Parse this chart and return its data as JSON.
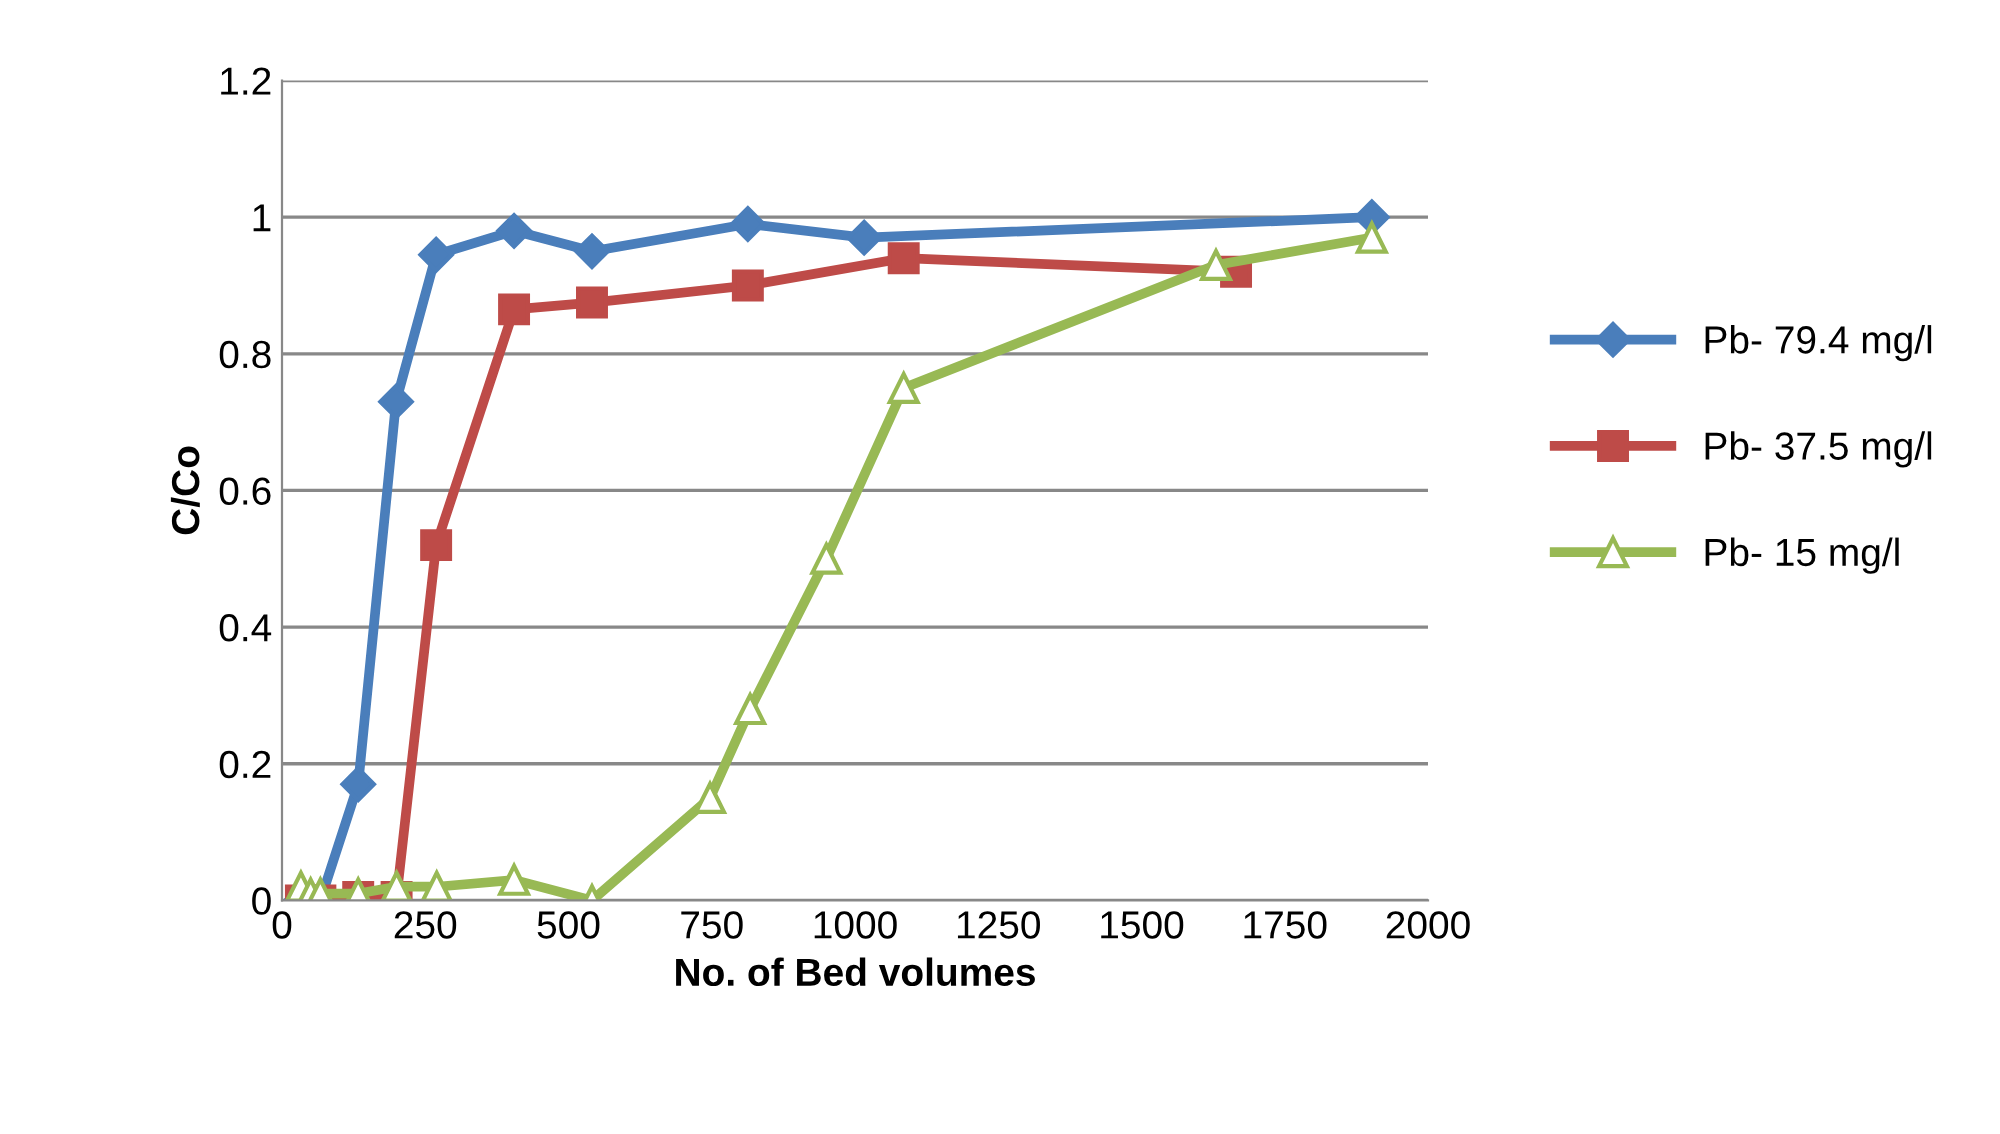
{
  "chart_data": {
    "type": "line",
    "xlabel": "No. of Bed volumes",
    "ylabel": "C/Co",
    "xlim": [
      0,
      2000
    ],
    "xticks": [
      0,
      250,
      500,
      750,
      1000,
      1250,
      1500,
      1750,
      2000
    ],
    "ylim": [
      0,
      1.2
    ],
    "yticks": [
      0,
      0.2,
      0.4,
      0.6,
      0.8,
      1,
      1.2
    ],
    "grid": "y",
    "legend": "right",
    "series": [
      {
        "name": "Pb- 79.4 mg/l",
        "color": "#4a7ebb",
        "marker": "diamond",
        "x": [
          33,
          67,
          133,
          199,
          269,
          405,
          541,
          813,
          1016,
          1902
        ],
        "values": [
          0,
          0,
          0.17,
          0.73,
          0.945,
          0.98,
          0.95,
          0.99,
          0.97,
          1.0
        ]
      },
      {
        "name": "Pb- 37.5 mg/l",
        "color": "#be4b48",
        "marker": "square",
        "x": [
          33,
          67,
          133,
          200,
          269,
          405,
          541,
          813,
          1085,
          1665
        ],
        "values": [
          0,
          0,
          0.005,
          0.005,
          0.52,
          0.865,
          0.875,
          0.9,
          0.94,
          0.92
        ]
      },
      {
        "name": "Pb- 15 mg/l",
        "color": "#98b954",
        "marker": "triangle",
        "x": [
          33,
          50,
          67,
          133,
          200,
          270,
          405,
          541,
          747,
          817,
          950,
          1085,
          1630,
          1902
        ],
        "values": [
          0.02,
          0.01,
          0.01,
          0.01,
          0.02,
          0.02,
          0.03,
          0,
          0.15,
          0.28,
          0.5,
          0.75,
          0.93,
          0.97
        ]
      }
    ]
  }
}
